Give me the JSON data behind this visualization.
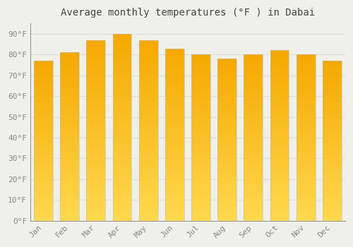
{
  "title": "Average monthly temperatures (°F ) in Dabai",
  "months": [
    "Jan",
    "Feb",
    "Mar",
    "Apr",
    "May",
    "Jun",
    "Jul",
    "Aug",
    "Sep",
    "Oct",
    "Nov",
    "Dec"
  ],
  "values": [
    77,
    81,
    87,
    90,
    87,
    83,
    80,
    78,
    80,
    82,
    80,
    77
  ],
  "bar_color_bottom": "#FFD84D",
  "bar_color_top": "#F5A800",
  "bar_edge_color": "#CCCCCC",
  "background_color": "#F0F0EA",
  "grid_color": "#DDDDDD",
  "yticks": [
    0,
    10,
    20,
    30,
    40,
    50,
    60,
    70,
    80,
    90
  ],
  "ylim": [
    0,
    95
  ],
  "title_fontsize": 10,
  "tick_fontsize": 8,
  "font_family": "monospace"
}
